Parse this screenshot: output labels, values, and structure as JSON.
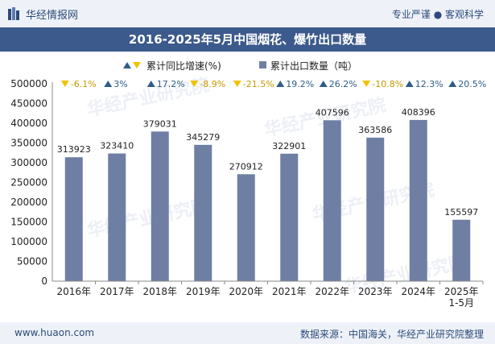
{
  "header": {
    "brand": "华经情报网",
    "slogan": "专业严谨 ● 客观科学"
  },
  "footer": {
    "site": "www.huaon.com",
    "source": "数据来源：中国海关，华经产业研究院整理"
  },
  "watermark": "华经产业研究院",
  "colors": {
    "bar": "#6e7fa3",
    "up": "#2f5d8a",
    "down": "#f2c200",
    "title_bg": "#3c5a8c"
  },
  "chart_data": {
    "type": "bar",
    "title": "2016-2025年5月中国烟花、爆竹出口数量",
    "categories": [
      "2016年",
      "2017年",
      "2018年",
      "2019年",
      "2020年",
      "2021年",
      "2022年",
      "2023年",
      "2024年",
      "2025年\n1-5月"
    ],
    "series": [
      {
        "name": "累计出口数量（吨）",
        "values": [
          313923,
          323410,
          379031,
          345279,
          270912,
          322901,
          407596,
          363586,
          408396,
          155597
        ]
      }
    ],
    "growth": {
      "name": "累计同比增速(%)",
      "values": [
        -6.1,
        3,
        17.2,
        -8.9,
        -21.5,
        19.2,
        26.2,
        -10.8,
        12.3,
        20.5
      ],
      "labels": [
        "-6.1%",
        "3%",
        "17.2%",
        "-8.9%",
        "-21.5%",
        "19.2%",
        "26.2%",
        "-10.8%",
        "12.3%",
        "20.5%"
      ]
    },
    "ylim": [
      0,
      500000
    ],
    "yticks": [
      0,
      50000,
      100000,
      150000,
      200000,
      250000,
      300000,
      350000,
      400000,
      450000,
      500000
    ],
    "legend": [
      "累计同比增速(%)",
      "累计出口数量（吨）"
    ],
    "legend_position": "top-center"
  }
}
